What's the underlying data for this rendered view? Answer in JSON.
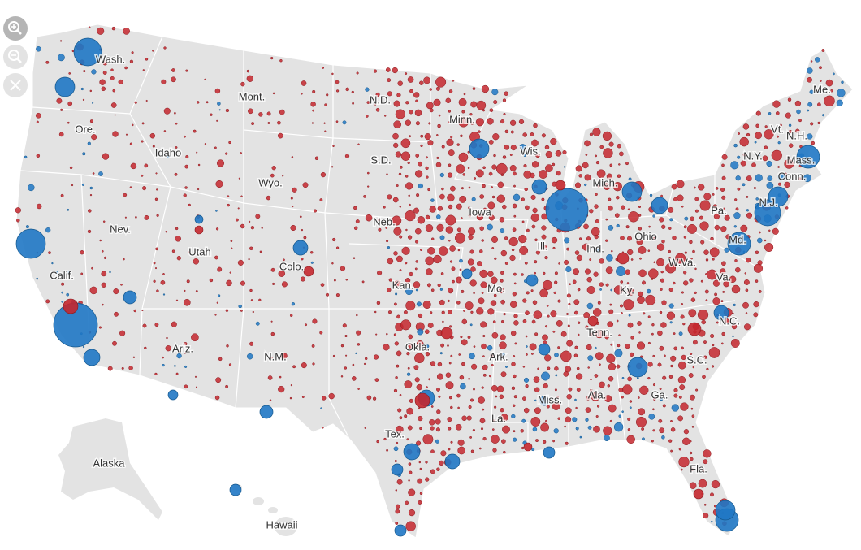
{
  "map": {
    "labels": [
      "Wash.",
      "Ore.",
      "Calif.",
      "Nev.",
      "Idaho",
      "Mont.",
      "Wyo.",
      "Utah",
      "Ariz.",
      "Colo.",
      "N.M.",
      "N.D.",
      "S.D.",
      "Neb.",
      "Kan.",
      "Okla.",
      "Tex.",
      "Minn.",
      "Iowa",
      "Mo.",
      "Ark.",
      "La.",
      "Wis.",
      "Ill.",
      "Mich.",
      "Ind.",
      "Ohio",
      "Ky.",
      "Tenn.",
      "Miss.",
      "Ala.",
      "Ga.",
      "Fla.",
      "S.C.",
      "N.C.",
      "Va.",
      "W.Va.",
      "Pa.",
      "Md.",
      "N.Y.",
      "N.J.",
      "Conn.",
      "Mass.",
      "Vt.",
      "N.H.",
      "Me.",
      "Alaska",
      "Hawaii"
    ]
  }
}
